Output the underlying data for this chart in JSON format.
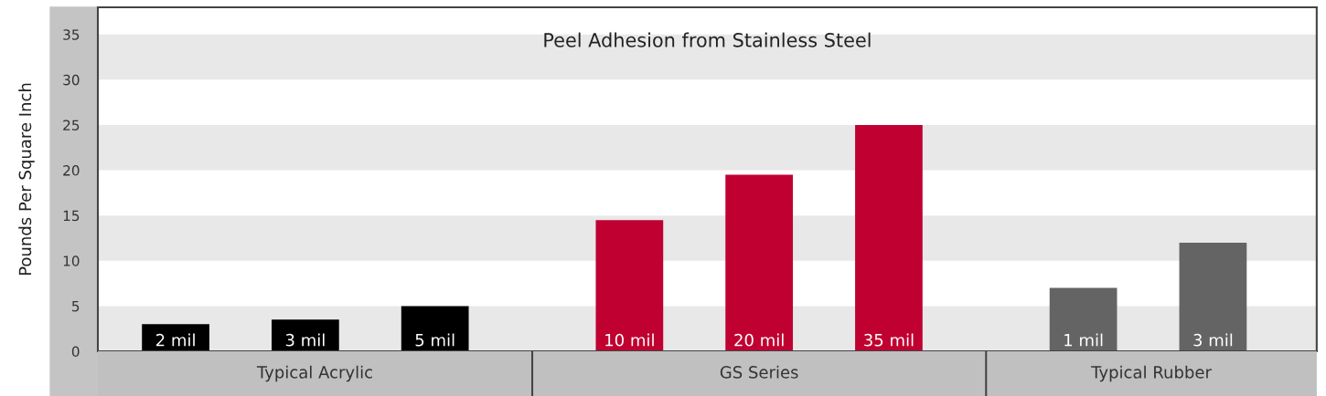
{
  "chart_data": {
    "type": "bar",
    "title": "Peel Adhesion from Stainless Steel",
    "ylabel": "Pounds Per Square Inch",
    "categories": [
      "2 mil",
      "3 mil",
      "5 mil",
      "10 mil",
      "20 mil",
      "35 mil",
      "1 mil",
      "3 mil"
    ],
    "values": [
      3,
      3.5,
      5,
      14.5,
      19.5,
      25,
      7,
      12
    ],
    "colors": [
      "#000000",
      "#000000",
      "#000000",
      "#c00030",
      "#c00030",
      "#c00030",
      "#646464",
      "#646464"
    ],
    "ylim": [
      0,
      38
    ],
    "yticks": [
      0,
      5,
      10,
      15,
      20,
      25,
      30,
      35
    ],
    "bands": [
      {
        "axis": "y",
        "from": 0,
        "to": 5,
        "color": "#e8e8e8"
      },
      {
        "axis": "y",
        "from": 10,
        "to": 15,
        "color": "#e8e8e8"
      },
      {
        "axis": "y",
        "from": 20,
        "to": 25,
        "color": "#e8e8e8"
      },
      {
        "axis": "y",
        "from": 30,
        "to": 35,
        "color": "#e8e8e8"
      }
    ],
    "annotations": [
      "Typical Acrylic",
      "GS Series",
      "Typical Rubber"
    ]
  }
}
